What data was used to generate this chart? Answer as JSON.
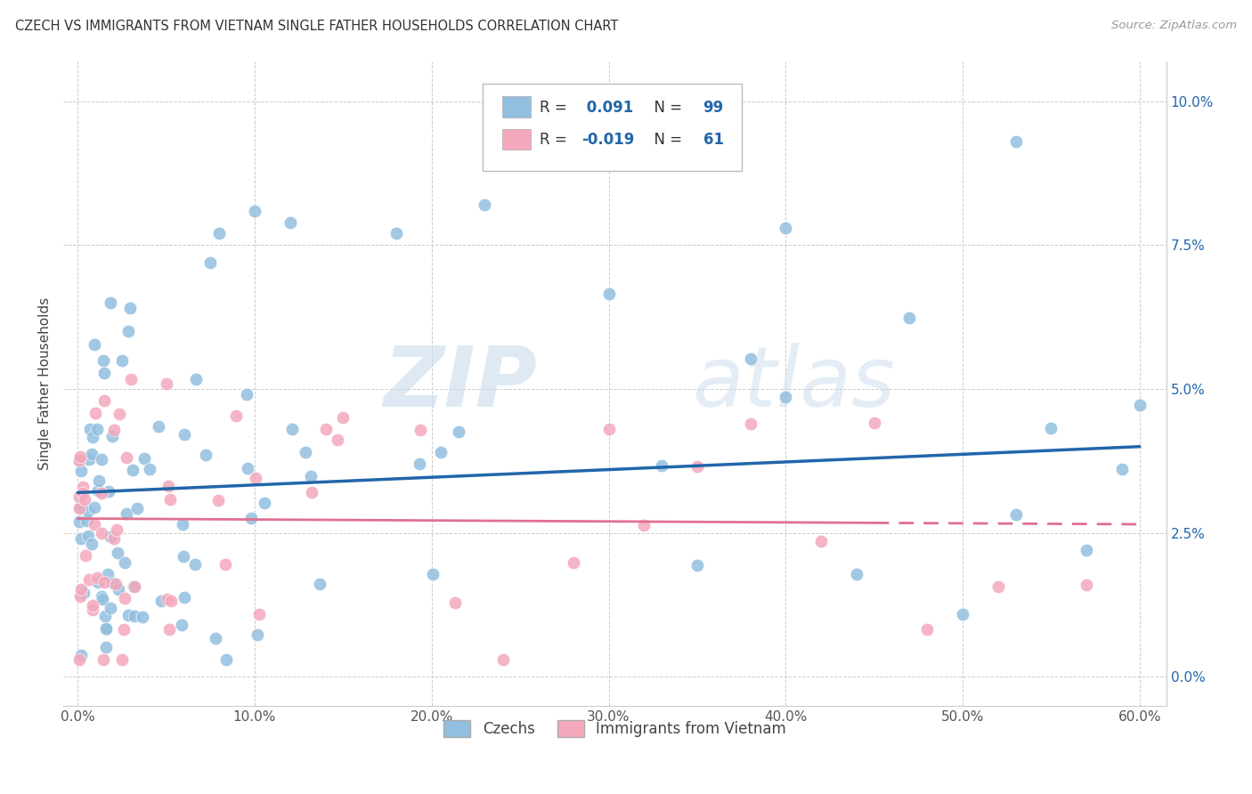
{
  "title": "CZECH VS IMMIGRANTS FROM VIETNAM SINGLE FATHER HOUSEHOLDS CORRELATION CHART",
  "source": "Source: ZipAtlas.com",
  "ylabel": "Single Father Households",
  "xlim": [
    0.0,
    0.6
  ],
  "ylim": [
    0.0,
    0.105
  ],
  "x_tick_vals": [
    0.0,
    0.1,
    0.2,
    0.3,
    0.4,
    0.5,
    0.6
  ],
  "x_tick_labels": [
    "0.0%",
    "10.0%",
    "20.0%",
    "30.0%",
    "40.0%",
    "50.0%",
    "60.0%"
  ],
  "y_tick_vals": [
    0.0,
    0.025,
    0.05,
    0.075,
    0.1
  ],
  "y_tick_labels": [
    "0.0%",
    "2.5%",
    "5.0%",
    "7.5%",
    "10.0%"
  ],
  "czech_color": "#92bfe0",
  "vietnam_color": "#f4a8bc",
  "czech_line_color": "#2266aa",
  "vietnam_line_color": "#e07090",
  "R_czech": 0.091,
  "N_czech": 99,
  "R_vietnam": -0.019,
  "N_vietnam": 61,
  "legend_label_czech": "Czechs",
  "legend_label_vietnam": "Immigrants from Vietnam",
  "watermark_zip": "ZIP",
  "watermark_atlas": "atlas",
  "grid_color": "#cccccc",
  "tick_color": "#2266aa",
  "title_color": "#333333",
  "source_color": "#999999"
}
